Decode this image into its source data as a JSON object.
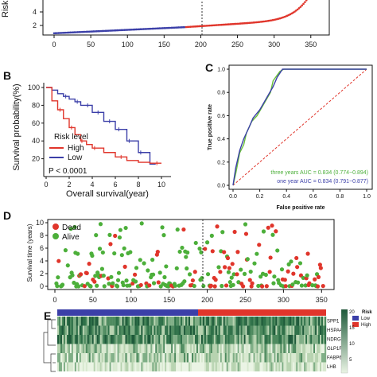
{
  "panels": {
    "A": {
      "label": "",
      "ylabel_partial": "Risk",
      "y_ticks": [
        "4",
        "2"
      ],
      "x_ticks": [
        "0",
        "50",
        "100",
        "150",
        "200",
        "250",
        "300",
        "350"
      ]
    },
    "B": {
      "label": "B",
      "ylabel": "Survival probability(%)",
      "xlabel": "Overall survival(year)",
      "y_ticks": [
        "100",
        "80",
        "60",
        "40",
        "20"
      ],
      "x_ticks": [
        "0",
        "2",
        "4",
        "6",
        "8",
        "10"
      ],
      "legend_title": "Risk level",
      "legend_high": "High",
      "legend_low": "Low",
      "pvalue": "P < 0.0001"
    },
    "C": {
      "label": "C",
      "ylabel": "True positive rate",
      "xlabel": "False positive rate",
      "y_ticks": [
        "1.0",
        "0.8",
        "0.6",
        "0.4",
        "0.2",
        "0.0"
      ],
      "x_ticks": [
        "0.0",
        "0.2",
        "0.4",
        "0.6",
        "0.8",
        "1.0"
      ],
      "auc3": "three years AUC = 0.834 (0.774−0.894)",
      "auc1": "one year AUC = 0.834 (0.791−0.877)"
    },
    "D": {
      "label": "D",
      "ylabel": "Survival time (years)",
      "legend_dead": "Dead",
      "legend_alive": "Alive",
      "y_ticks": [
        "10",
        "8",
        "6",
        "4",
        "2",
        "0"
      ],
      "x_ticks": [
        "0",
        "50",
        "100",
        "150",
        "200",
        "250",
        "300",
        "350"
      ]
    },
    "E": {
      "label": "E",
      "genes": [
        "SPP1",
        "HSPA4",
        "NDRG1",
        "GLP1R",
        "FABP6",
        "LHB"
      ],
      "legend_risk_title": "Risk",
      "legend_low": "Low",
      "legend_high": "High",
      "scale_ticks": [
        "20",
        "15",
        "10",
        "5"
      ]
    }
  },
  "colors": {
    "high": "#e0352b",
    "low": "#3b3fa8",
    "alive": "#4caf3a",
    "roc3": "#6abf3a",
    "roc1": "#3b3fa8",
    "diag": "#e0352b",
    "hm_dark": "#1e5a3a",
    "hm_light": "#eaf4e4"
  },
  "chart_data": [
    {
      "type": "scatter",
      "panel": "A",
      "description_series": "risk score sorted",
      "series": [
        {
          "name": "Low",
          "x_range": [
            0,
            178
          ],
          "values_range": [
            1.2,
            1.9
          ]
        },
        {
          "name": "High",
          "x_range": [
            179,
            345
          ],
          "values_range": [
            1.9,
            5.0
          ]
        }
      ],
      "cutoff_x": 178,
      "xlim": [
        0,
        360
      ]
    },
    {
      "type": "line",
      "panel": "B",
      "xlim": [
        0,
        10
      ],
      "ylim": [
        0,
        100
      ],
      "series": [
        {
          "name": "High",
          "x": [
            0,
            0.5,
            1,
            1.5,
            2,
            2.5,
            3,
            3.5,
            4,
            5,
            6,
            7,
            8,
            9,
            10
          ],
          "values": [
            100,
            85,
            75,
            65,
            55,
            47,
            40,
            36,
            32,
            27,
            22,
            18,
            16,
            15,
            15
          ]
        },
        {
          "name": "Low",
          "x": [
            0,
            0.5,
            1,
            1.5,
            2,
            2.5,
            3,
            4,
            5,
            6,
            7,
            7.5,
            8,
            8.5,
            9,
            9.5
          ],
          "values": [
            100,
            97,
            93,
            90,
            87,
            84,
            80,
            72,
            62,
            53,
            40,
            40,
            27,
            27,
            14,
            14
          ]
        }
      ]
    },
    {
      "type": "line",
      "panel": "C",
      "xlim": [
        0,
        1
      ],
      "ylim": [
        0,
        1
      ],
      "series": [
        {
          "name": "three years AUC = 0.834 (0.774−0.894)",
          "x": [
            0,
            0.02,
            0.05,
            0.08,
            0.1,
            0.14,
            0.18,
            0.22,
            0.28,
            0.3,
            0.35,
            0.38,
            0.4,
            1.0
          ],
          "values": [
            0,
            0.1,
            0.28,
            0.35,
            0.45,
            0.55,
            0.6,
            0.68,
            0.8,
            0.9,
            0.98,
            1.0,
            1.0,
            1.0
          ]
        },
        {
          "name": "one year AUC = 0.834 (0.791−0.877)",
          "x": [
            0,
            0.02,
            0.05,
            0.08,
            0.12,
            0.15,
            0.2,
            0.25,
            0.3,
            0.33,
            0.37,
            0.4,
            1.0
          ],
          "values": [
            0,
            0.15,
            0.3,
            0.4,
            0.5,
            0.58,
            0.65,
            0.75,
            0.85,
            0.93,
            1.0,
            1.0,
            1.0
          ]
        }
      ]
    },
    {
      "type": "scatter",
      "panel": "D",
      "xlim": [
        0,
        360
      ],
      "ylim": [
        0,
        10.5
      ],
      "cutoff_x": 178,
      "series": [
        {
          "name": "Dead"
        },
        {
          "name": "Alive"
        }
      ]
    },
    {
      "type": "heatmap",
      "panel": "E",
      "rows": [
        "SPP1",
        "HSPA4",
        "NDRG1",
        "GLP1R",
        "FABP6",
        "LHB"
      ],
      "risk_split": {
        "Low": 178,
        "High": 182
      }
    }
  ]
}
